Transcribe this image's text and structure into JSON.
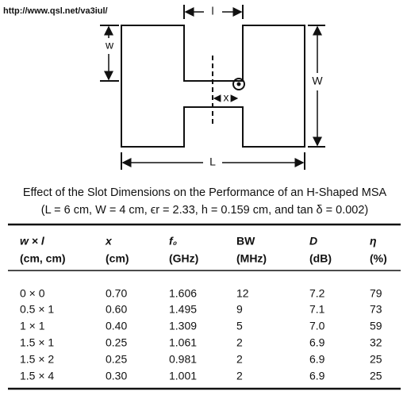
{
  "url": "http://www.qsl.net/va3iul/",
  "diagram": {
    "l": "l",
    "w": "w",
    "W": "W",
    "x": "x",
    "L": "L"
  },
  "caption": {
    "title": "Effect of the Slot Dimensions on the Performance of an H-Shaped MSA",
    "subtitle": "(L = 6 cm, W = 4 cm, ϵr = 2.33, h = 0.159 cm, and tan δ = 0.002)"
  },
  "table": {
    "header": [
      [
        "w × l",
        "x",
        "f₀",
        "BW",
        "D",
        "η"
      ],
      [
        "(cm, cm)",
        "(cm)",
        "(GHz)",
        "(MHz)",
        "(dB)",
        "(%)"
      ]
    ],
    "rows": [
      [
        "0 × 0",
        "0.70",
        "1.606",
        "12",
        "7.2",
        "79"
      ],
      [
        "0.5 × 1",
        "0.60",
        "1.495",
        "9",
        "7.1",
        "73"
      ],
      [
        "1 × 1",
        "0.40",
        "1.309",
        "5",
        "7.0",
        "59"
      ],
      [
        "1.5 × 1",
        "0.25",
        "1.061",
        "2",
        "6.9",
        "32"
      ],
      [
        "1.5 × 2",
        "0.25",
        "0.981",
        "2",
        "6.9",
        "25"
      ],
      [
        "1.5 × 4",
        "0.30",
        "1.001",
        "2",
        "6.9",
        "25"
      ]
    ]
  }
}
